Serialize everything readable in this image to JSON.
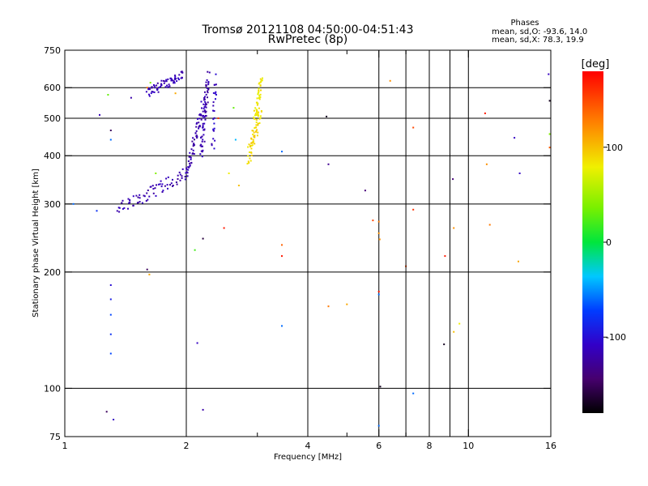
{
  "chart_data": {
    "type": "scatter",
    "title": "Tromsø 20121108 04:50:00-04:51:43",
    "subtitle": "RwPretec (8p)",
    "xlabel": "Frequency [MHz]",
    "ylabel": "Stationary phase Virtual Height [km]",
    "x_scale": "log",
    "y_scale": "log",
    "xlim": [
      1,
      16
    ],
    "ylim": [
      75,
      750
    ],
    "x_ticks": [
      1,
      2,
      4,
      6,
      8,
      10,
      16
    ],
    "x_tick_labels": [
      "1",
      "2",
      "4",
      "6",
      "8",
      "10",
      "16"
    ],
    "y_ticks": [
      75,
      100,
      200,
      300,
      400,
      500,
      600,
      750
    ],
    "y_tick_labels": [
      "75",
      "100",
      "200",
      "300",
      "400",
      "500",
      "600",
      "750"
    ],
    "x_grid_lines": [
      2,
      4,
      6,
      8,
      10
    ],
    "x_minor_ticks": [
      3,
      5,
      7,
      9
    ],
    "x_extra_ticks": [
      7,
      9
    ],
    "y_grid_lines": [
      100,
      200,
      300,
      400,
      500,
      600
    ],
    "grid": true,
    "stats": {
      "heading": "Phases",
      "line_o": "mean, sd,O: -93.6, 14.0",
      "line_x": "mean, sd,X:  78.3, 19.9"
    },
    "colorbar": {
      "label": "[deg]",
      "range": [
        -180,
        180
      ],
      "ticks": [
        -100,
        0,
        100
      ],
      "tick_labels": [
        "-100",
        "0",
        "100"
      ]
    },
    "traces": [
      {
        "name": "",
        "phase": -115,
        "f_range": [
          1.6,
          1.97
        ],
        "h_range": [
          580,
          650
        ],
        "n": 65,
        "scatter_h": 0.03
      },
      {
        "name": "",
        "phase": -117,
        "f_range": [
          1.35,
          2.0
        ],
        "h_range": [
          288,
          360
        ],
        "n": 70,
        "scatter_h": 0.04
      },
      {
        "name": "",
        "phase": -118,
        "f_range": [
          2.0,
          2.22
        ],
        "h_range": [
          355,
          560
        ],
        "n": 70,
        "scatter_h": 0.03
      },
      {
        "name": "",
        "phase": -118,
        "f_range": [
          2.18,
          2.27
        ],
        "h_range": [
          400,
          650
        ],
        "n": 60,
        "scatter_h": 0.04
      },
      {
        "name": "",
        "phase": -110,
        "f_range": [
          2.33,
          2.36
        ],
        "h_range": [
          420,
          640
        ],
        "n": 25,
        "scatter_h": 0.03
      },
      {
        "name": "",
        "phase": 90,
        "f_range": [
          2.85,
          3.05
        ],
        "h_range": [
          395,
          520
        ],
        "n": 65,
        "scatter_h": 0.05
      },
      {
        "name": "",
        "phase": 82,
        "f_range": [
          2.95,
          3.08
        ],
        "h_range": [
          500,
          640
        ],
        "n": 40,
        "scatter_h": 0.03
      }
    ],
    "scatter_points": [
      {
        "f": 1.05,
        "h": 300,
        "phase": -60
      },
      {
        "f": 1.2,
        "h": 288,
        "phase": -80
      },
      {
        "f": 1.22,
        "h": 510,
        "phase": -115
      },
      {
        "f": 1.28,
        "h": 575,
        "phase": 30
      },
      {
        "f": 1.3,
        "h": 465,
        "phase": -150
      },
      {
        "f": 1.3,
        "h": 440,
        "phase": -60
      },
      {
        "f": 1.3,
        "h": 185,
        "phase": -100
      },
      {
        "f": 1.3,
        "h": 170,
        "phase": -90
      },
      {
        "f": 1.3,
        "h": 155,
        "phase": -70
      },
      {
        "f": 1.3,
        "h": 138,
        "phase": -80
      },
      {
        "f": 1.3,
        "h": 123,
        "phase": -70
      },
      {
        "f": 1.27,
        "h": 87,
        "phase": -150
      },
      {
        "f": 1.32,
        "h": 83,
        "phase": -110
      },
      {
        "f": 1.46,
        "h": 565,
        "phase": -120
      },
      {
        "f": 1.6,
        "h": 600,
        "phase": 130
      },
      {
        "f": 1.63,
        "h": 618,
        "phase": 40
      },
      {
        "f": 1.6,
        "h": 203,
        "phase": -150
      },
      {
        "f": 1.62,
        "h": 197,
        "phase": 110
      },
      {
        "f": 1.68,
        "h": 360,
        "phase": 40
      },
      {
        "f": 1.88,
        "h": 580,
        "phase": 110
      },
      {
        "f": 2.1,
        "h": 228,
        "phase": 20
      },
      {
        "f": 2.13,
        "h": 131,
        "phase": -110
      },
      {
        "f": 2.2,
        "h": 88,
        "phase": -120
      },
      {
        "f": 2.2,
        "h": 244,
        "phase": -160
      },
      {
        "f": 2.4,
        "h": 500,
        "phase": 160
      },
      {
        "f": 2.48,
        "h": 260,
        "phase": 170
      },
      {
        "f": 2.55,
        "h": 360,
        "phase": 80
      },
      {
        "f": 2.62,
        "h": 532,
        "phase": 30
      },
      {
        "f": 2.65,
        "h": 440,
        "phase": -40
      },
      {
        "f": 2.7,
        "h": 335,
        "phase": 100
      },
      {
        "f": 3.45,
        "h": 410,
        "phase": -60
      },
      {
        "f": 3.45,
        "h": 235,
        "phase": 140
      },
      {
        "f": 3.45,
        "h": 220,
        "phase": 170
      },
      {
        "f": 3.45,
        "h": 145,
        "phase": -60
      },
      {
        "f": 4.45,
        "h": 505,
        "phase": -170
      },
      {
        "f": 4.5,
        "h": 380,
        "phase": -130
      },
      {
        "f": 4.5,
        "h": 163,
        "phase": 130
      },
      {
        "f": 5.0,
        "h": 165,
        "phase": 110
      },
      {
        "f": 5.55,
        "h": 325,
        "phase": -140
      },
      {
        "f": 5.8,
        "h": 272,
        "phase": 150
      },
      {
        "f": 6.0,
        "h": 270,
        "phase": 130
      },
      {
        "f": 6.0,
        "h": 252,
        "phase": 120
      },
      {
        "f": 6.03,
        "h": 243,
        "phase": 120
      },
      {
        "f": 6.0,
        "h": 178,
        "phase": 170
      },
      {
        "f": 6.0,
        "h": 175,
        "phase": -60
      },
      {
        "f": 6.05,
        "h": 101,
        "phase": -170
      },
      {
        "f": 6.0,
        "h": 80,
        "phase": -60
      },
      {
        "f": 6.4,
        "h": 625,
        "phase": 120
      },
      {
        "f": 7.0,
        "h": 207,
        "phase": 150
      },
      {
        "f": 7.3,
        "h": 473,
        "phase": 150
      },
      {
        "f": 7.3,
        "h": 290,
        "phase": 160
      },
      {
        "f": 7.3,
        "h": 97,
        "phase": -60
      },
      {
        "f": 8.75,
        "h": 220,
        "phase": 170
      },
      {
        "f": 8.7,
        "h": 130,
        "phase": -170
      },
      {
        "f": 9.2,
        "h": 140,
        "phase": 100
      },
      {
        "f": 9.5,
        "h": 147,
        "phase": 80
      },
      {
        "f": 9.15,
        "h": 348,
        "phase": -140
      },
      {
        "f": 9.2,
        "h": 260,
        "phase": 120
      },
      {
        "f": 11.0,
        "h": 515,
        "phase": 170
      },
      {
        "f": 11.1,
        "h": 380,
        "phase": 120
      },
      {
        "f": 11.3,
        "h": 265,
        "phase": 130
      },
      {
        "f": 13.0,
        "h": 445,
        "phase": -110
      },
      {
        "f": 13.4,
        "h": 360,
        "phase": -110
      },
      {
        "f": 13.3,
        "h": 213,
        "phase": 110
      },
      {
        "f": 15.8,
        "h": 650,
        "phase": -110
      },
      {
        "f": 15.9,
        "h": 555,
        "phase": -170
      },
      {
        "f": 15.9,
        "h": 455,
        "phase": 40
      },
      {
        "f": 15.9,
        "h": 420,
        "phase": 140
      }
    ]
  }
}
